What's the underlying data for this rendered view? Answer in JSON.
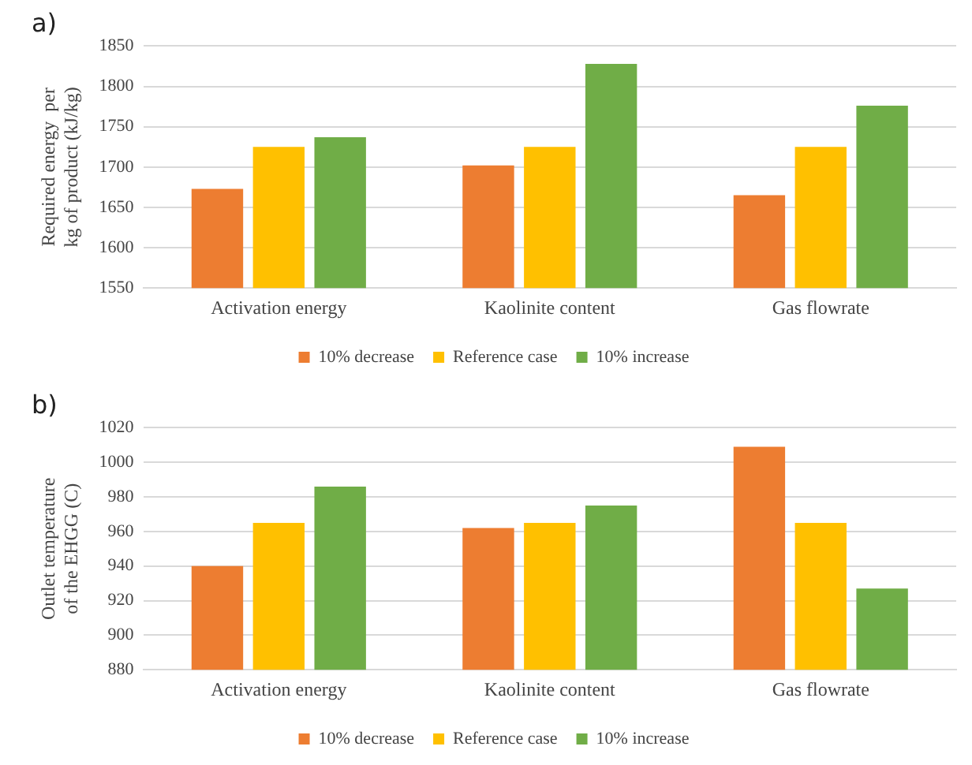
{
  "chart_data": [
    {
      "type": "bar",
      "title": "a)",
      "ylabel": "Required energy  per kg of product (kJ/kg)",
      "categories": [
        "Activation energy",
        "Kaolinite content",
        "Gas flowrate"
      ],
      "series": [
        {
          "name": "10% decrease",
          "color": "#ed7d31",
          "values": [
            1673,
            1702,
            1665
          ]
        },
        {
          "name": "Reference case",
          "color": "#ffc000",
          "values": [
            1725,
            1725,
            1725
          ]
        },
        {
          "name": "10% increase",
          "color": "#70ad47",
          "values": [
            1737,
            1828,
            1776
          ]
        }
      ],
      "ylim": [
        1550,
        1850
      ],
      "yticks": [
        1550,
        1600,
        1650,
        1700,
        1750,
        1800,
        1850
      ],
      "grid": "y",
      "legend": "bottom"
    },
    {
      "type": "bar",
      "title": "b)",
      "ylabel": "Outlet temperature of the EHGG (C)",
      "categories": [
        "Activation energy",
        "Kaolinite content",
        "Gas flowrate"
      ],
      "series": [
        {
          "name": "10% decrease",
          "color": "#ed7d31",
          "values": [
            940,
            962,
            1009
          ]
        },
        {
          "name": "Reference case",
          "color": "#ffc000",
          "values": [
            965,
            965,
            965
          ]
        },
        {
          "name": "10% increase",
          "color": "#70ad47",
          "values": [
            986,
            975,
            927
          ]
        }
      ],
      "ylim": [
        880,
        1020
      ],
      "yticks": [
        880,
        900,
        920,
        940,
        960,
        980,
        1000,
        1020
      ],
      "grid": "y",
      "legend": "bottom"
    }
  ]
}
